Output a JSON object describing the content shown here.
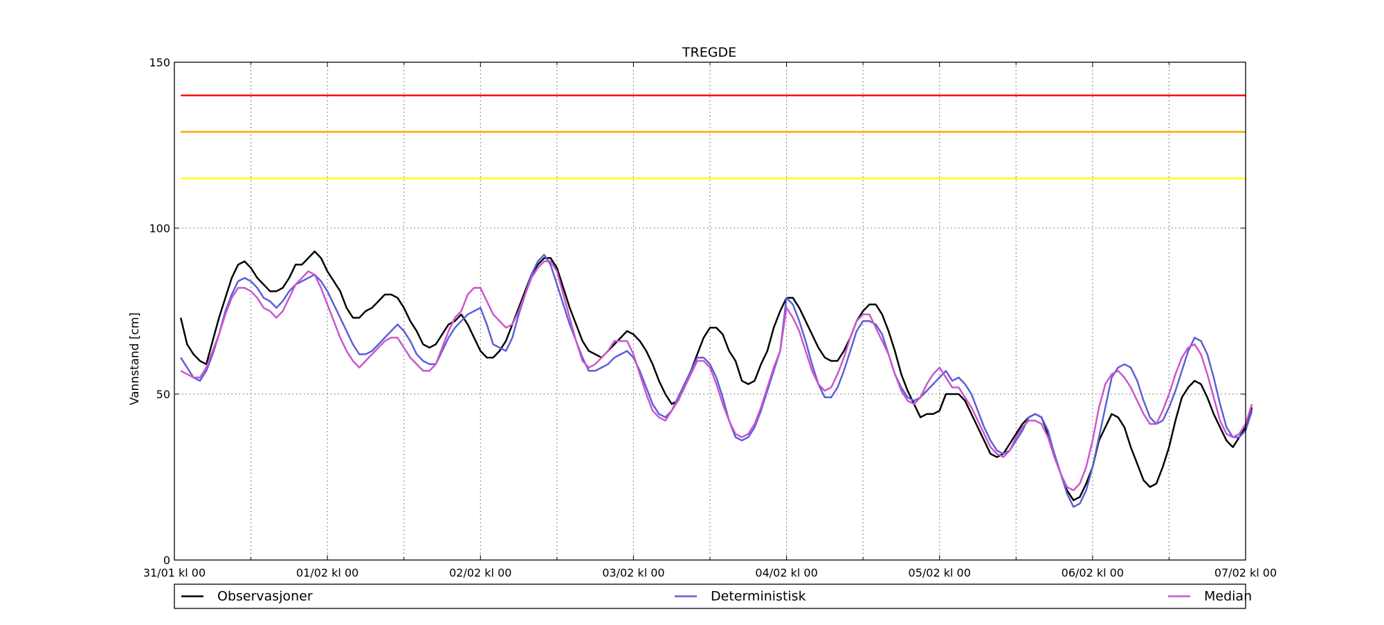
{
  "chart_data": {
    "type": "line",
    "title": "TREGDE",
    "xlabel": "",
    "ylabel": "Vannstand [cm]",
    "xlim": [
      "31/01 kl 00",
      "07/02 kl 00"
    ],
    "ylim": [
      0,
      150
    ],
    "x_tick_labels": [
      "31/01 kl 00",
      "01/02 kl 00",
      "02/02 kl 00",
      "03/02 kl 00",
      "04/02 kl 00",
      "05/02 kl 00",
      "06/02 kl 00",
      "07/02 kl 00"
    ],
    "y_ticks": [
      0,
      50,
      100,
      150
    ],
    "grid": true,
    "legend_position": "bottom",
    "legend": [
      "Observasjoner",
      "Deterministisk",
      "Median"
    ],
    "threshold_lines": [
      {
        "value": 140,
        "color": "#ff0000"
      },
      {
        "value": 129,
        "color": "#ffa500"
      },
      {
        "value": 115,
        "color": "#ffff00"
      }
    ],
    "x_hours_step": 1,
    "series": [
      {
        "name": "Observasjoner",
        "color": "#000000",
        "start_hour": 1,
        "values": [
          73,
          65,
          62,
          60,
          59,
          66,
          73,
          79,
          85,
          89,
          90,
          88,
          85,
          83,
          81,
          81,
          82,
          85,
          89,
          89,
          91,
          93,
          91,
          87,
          84,
          81,
          76,
          73,
          73,
          75,
          76,
          78,
          80,
          80,
          79,
          76,
          72,
          69,
          65,
          64,
          65,
          68,
          71,
          72,
          74,
          71,
          67,
          63,
          61,
          61,
          63,
          66,
          71,
          76,
          81,
          86,
          89,
          91,
          91,
          88,
          82,
          76,
          71,
          66,
          63,
          62,
          61,
          63,
          65,
          67,
          69,
          68,
          66,
          63,
          59,
          54,
          50,
          47,
          48,
          52,
          57,
          62,
          67,
          70,
          70,
          68,
          63,
          60,
          54,
          53,
          54,
          59,
          63,
          70,
          75,
          79,
          79,
          76,
          72,
          68,
          64,
          61,
          60,
          60,
          63,
          67,
          72,
          75,
          77,
          77,
          74,
          69,
          63,
          56,
          51,
          47,
          43,
          44,
          44,
          45,
          50,
          50,
          50,
          48,
          44,
          40,
          36,
          32,
          31,
          32,
          35,
          38,
          41,
          43,
          44,
          43,
          38,
          32,
          26,
          21,
          18,
          19,
          23,
          28,
          36,
          40,
          44,
          43,
          40,
          34,
          29,
          24,
          22,
          23,
          28,
          34,
          42,
          49,
          52,
          54,
          53,
          49,
          44,
          40,
          36,
          34,
          37,
          40,
          46
        ]
      },
      {
        "name": "Deterministisk",
        "color": "#5a5fd6",
        "start_hour": 1,
        "values": [
          61,
          58,
          55,
          54,
          57,
          62,
          68,
          75,
          80,
          84,
          85,
          84,
          82,
          79,
          78,
          76,
          78,
          81,
          83,
          84,
          85,
          86,
          84,
          81,
          77,
          73,
          69,
          65,
          62,
          62,
          63,
          65,
          67,
          69,
          71,
          69,
          66,
          62,
          60,
          59,
          59,
          63,
          67,
          70,
          72,
          74,
          75,
          76,
          71,
          65,
          64,
          63,
          67,
          74,
          80,
          86,
          90,
          92,
          89,
          83,
          77,
          71,
          66,
          61,
          57,
          57,
          58,
          59,
          61,
          62,
          63,
          61,
          57,
          52,
          47,
          44,
          43,
          45,
          49,
          53,
          57,
          61,
          61,
          59,
          55,
          49,
          42,
          37,
          36,
          37,
          40,
          45,
          51,
          57,
          63,
          79,
          77,
          72,
          66,
          59,
          53,
          49,
          49,
          52,
          57,
          63,
          69,
          72,
          72,
          71,
          68,
          62,
          56,
          52,
          49,
          48,
          49,
          51,
          53,
          55,
          57,
          54,
          55,
          53,
          50,
          45,
          40,
          36,
          33,
          32,
          33,
          36,
          39,
          43,
          44,
          43,
          39,
          32,
          26,
          20,
          16,
          17,
          21,
          28,
          37,
          46,
          55,
          58,
          59,
          58,
          54,
          48,
          43,
          41,
          42,
          46,
          51,
          57,
          63,
          67,
          66,
          62,
          55,
          47,
          40,
          37,
          37,
          39,
          45
        ]
      },
      {
        "name": "Median",
        "color": "#cc55cc",
        "start_hour": 1,
        "values": [
          57,
          56,
          55,
          55,
          58,
          63,
          68,
          74,
          79,
          82,
          82,
          81,
          79,
          76,
          75,
          73,
          75,
          79,
          83,
          85,
          87,
          86,
          82,
          77,
          72,
          67,
          63,
          60,
          58,
          60,
          62,
          64,
          66,
          67,
          67,
          64,
          61,
          59,
          57,
          57,
          59,
          64,
          69,
          73,
          75,
          80,
          82,
          82,
          78,
          74,
          72,
          70,
          71,
          75,
          80,
          85,
          88,
          90,
          90,
          87,
          80,
          73,
          66,
          60,
          58,
          59,
          61,
          63,
          66,
          66,
          66,
          62,
          56,
          50,
          45,
          43,
          42,
          45,
          48,
          52,
          56,
          60,
          60,
          58,
          53,
          47,
          42,
          38,
          37,
          38,
          41,
          46,
          52,
          58,
          63,
          76,
          73,
          69,
          63,
          57,
          53,
          51,
          52,
          56,
          61,
          67,
          72,
          74,
          74,
          70,
          66,
          62,
          56,
          51,
          48,
          47,
          49,
          53,
          56,
          58,
          55,
          52,
          52,
          49,
          46,
          42,
          38,
          34,
          32,
          31,
          33,
          37,
          40,
          42,
          42,
          41,
          37,
          31,
          26,
          22,
          21,
          23,
          28,
          36,
          46,
          53,
          56,
          57,
          55,
          52,
          48,
          44,
          41,
          41,
          45,
          50,
          56,
          61,
          64,
          65,
          62,
          56,
          49,
          42,
          38,
          37,
          38,
          41,
          47
        ]
      }
    ]
  }
}
